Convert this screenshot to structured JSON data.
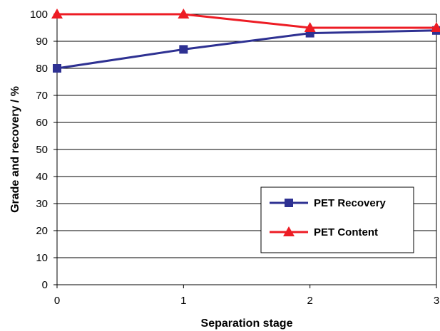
{
  "chart_data": {
    "type": "line",
    "x": [
      0,
      1,
      2,
      3
    ],
    "xlabel": "Separation stage",
    "ylabel": "Grade and recovery / %",
    "xlim": [
      0,
      3
    ],
    "ylim": [
      0,
      100
    ],
    "xticks": [
      "0",
      "1",
      "2",
      "3"
    ],
    "yticks": [
      "0",
      "10",
      "20",
      "30",
      "40",
      "50",
      "60",
      "70",
      "80",
      "90",
      "100"
    ],
    "grid": "horizontal",
    "legend_position": "bottom-right",
    "series": [
      {
        "name": "PET Recovery",
        "values": [
          80,
          87,
          93,
          94
        ],
        "color": "#2E3192",
        "marker": "square"
      },
      {
        "name": "PET Content",
        "values": [
          100,
          100,
          95,
          95
        ],
        "color": "#ED1C24",
        "marker": "triangle"
      }
    ]
  }
}
